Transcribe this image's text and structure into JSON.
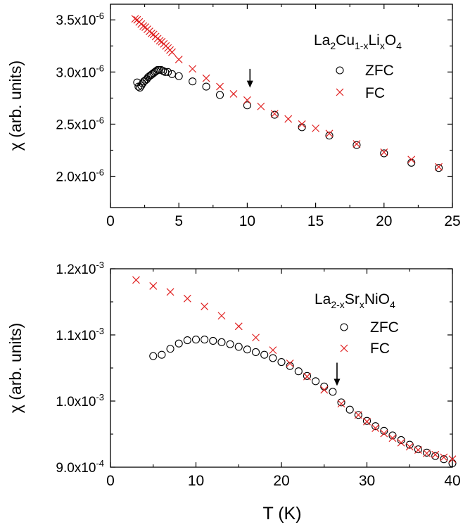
{
  "colors": {
    "zfc": "#000000",
    "fc": "#e02020",
    "axis": "#000000"
  },
  "figure": {
    "xlabel": "T (K)"
  },
  "chart_data": [
    {
      "type": "scatter",
      "panel": "top",
      "ylabel": "χ (arb. units)",
      "legend_title": {
        "text": "La2Cu1-xLixO4",
        "base": [
          "La",
          "Cu",
          "Li",
          "O"
        ],
        "subscripts": [
          "2",
          "1-x",
          "x",
          "4"
        ]
      },
      "legend_position": "top-right",
      "xlim": [
        0,
        25
      ],
      "ylim": [
        1.7e-06,
        3.65e-06
      ],
      "xticks": [
        0,
        5,
        10,
        15,
        20,
        25
      ],
      "xtick_labels": [
        "0",
        "5",
        "10",
        "15",
        "20",
        "25"
      ],
      "yticks": [
        2e-06,
        2.5e-06,
        3e-06,
        3.5e-06
      ],
      "ytick_labels": [
        {
          "mantissa": "2.0x10",
          "exp": "-6"
        },
        {
          "mantissa": "2.5x10",
          "exp": "-6"
        },
        {
          "mantissa": "3.0x10",
          "exp": "-6"
        },
        {
          "mantissa": "3.5x10",
          "exp": "-6"
        }
      ],
      "arrow_at": {
        "x": 10.2,
        "y_from": 3.03e-06,
        "y_to": 2.85e-06
      },
      "series": [
        {
          "name": "ZFC",
          "marker": "circle",
          "x": [
            1.95,
            2.05,
            2.15,
            2.25,
            2.35,
            2.45,
            2.55,
            2.65,
            2.75,
            2.85,
            2.95,
            3.05,
            3.15,
            3.25,
            3.35,
            3.45,
            3.55,
            3.7,
            3.85,
            4.0,
            4.2,
            4.5,
            5.0,
            6.0,
            7.0,
            8.0,
            10.0,
            12.0,
            14.0,
            16.0,
            18.0,
            20.0,
            22.0,
            24.0
          ],
          "y": [
            2.9e-06,
            2.86e-06,
            2.85e-06,
            2.87e-06,
            2.89e-06,
            2.91e-06,
            2.92e-06,
            2.93e-06,
            2.95e-06,
            2.96e-06,
            2.97e-06,
            2.98e-06,
            2.99e-06,
            3e-06,
            3.01e-06,
            3.02e-06,
            3.02e-06,
            3.02e-06,
            3.01e-06,
            3e-06,
            3e-06,
            2.98e-06,
            2.96e-06,
            2.91e-06,
            2.86e-06,
            2.78e-06,
            2.68e-06,
            2.59e-06,
            2.47e-06,
            2.39e-06,
            2.3e-06,
            2.22e-06,
            2.13e-06,
            2.08e-06
          ]
        },
        {
          "name": "FC",
          "marker": "cross",
          "x": [
            1.8,
            1.95,
            2.1,
            2.25,
            2.4,
            2.55,
            2.7,
            2.85,
            3.0,
            3.15,
            3.3,
            3.45,
            3.6,
            3.75,
            3.9,
            4.05,
            4.2,
            4.35,
            4.5,
            5.0,
            6.0,
            7.0,
            8.0,
            9.0,
            10.0,
            11.0,
            12.0,
            13.0,
            14.0,
            15.0,
            16.0,
            18.0,
            20.0,
            22.0,
            24.0
          ],
          "y": [
            3.51e-06,
            3.5e-06,
            3.48e-06,
            3.46e-06,
            3.44e-06,
            3.43e-06,
            3.41e-06,
            3.39e-06,
            3.37e-06,
            3.36e-06,
            3.34e-06,
            3.32e-06,
            3.3e-06,
            3.29e-06,
            3.27e-06,
            3.25e-06,
            3.23e-06,
            3.21e-06,
            3.19e-06,
            3.12e-06,
            3.03e-06,
            2.94e-06,
            2.86e-06,
            2.79e-06,
            2.73e-06,
            2.67e-06,
            2.6e-06,
            2.55e-06,
            2.5e-06,
            2.46e-06,
            2.41e-06,
            2.31e-06,
            2.23e-06,
            2.16e-06,
            2.09e-06
          ]
        }
      ]
    },
    {
      "type": "scatter",
      "panel": "bottom",
      "ylabel": "χ (arb. units)",
      "xlabel": "T (K)",
      "legend_title": {
        "text": "La2-xSrxNiO4",
        "base": [
          "La",
          "Sr",
          "NiO"
        ],
        "subscripts": [
          "2-x",
          "x",
          "4"
        ]
      },
      "legend_position": "right",
      "xlim": [
        0,
        40
      ],
      "ylim": [
        0.0009,
        0.0012
      ],
      "xticks": [
        0,
        10,
        20,
        30,
        40
      ],
      "xtick_labels": [
        "0",
        "10",
        "20",
        "30",
        "40"
      ],
      "yticks": [
        0.0009,
        0.001,
        0.0011,
        0.0012
      ],
      "ytick_labels": [
        {
          "mantissa": "9.0x10",
          "exp": "-4"
        },
        {
          "mantissa": "1.0x10",
          "exp": "-3"
        },
        {
          "mantissa": "1.1x10",
          "exp": "-3"
        },
        {
          "mantissa": "1.2x10",
          "exp": "-3"
        }
      ],
      "arrow_at": {
        "x": 26.5,
        "y_from": 0.001058,
        "y_to": 0.001023
      },
      "series": [
        {
          "name": "ZFC",
          "marker": "circle",
          "x": [
            5,
            6,
            7,
            8,
            9,
            10,
            11,
            12,
            13,
            14,
            15,
            16,
            17,
            18,
            19,
            20,
            21,
            22,
            23,
            24,
            25,
            26,
            27,
            28,
            29,
            30,
            31,
            32,
            33,
            34,
            35,
            36,
            37,
            38,
            39,
            40
          ],
          "y": [
            0.001068,
            0.00107,
            0.001079,
            0.001087,
            0.001092,
            0.001093,
            0.001093,
            0.001091,
            0.001089,
            0.001086,
            0.001082,
            0.001078,
            0.001074,
            0.00107,
            0.001065,
            0.001059,
            0.001053,
            0.001045,
            0.001038,
            0.00103,
            0.001022,
            0.001014,
            0.000998,
            0.000987,
            0.000979,
            0.00097,
            0.000962,
            0.000955,
            0.000948,
            0.000941,
            0.000934,
            0.000927,
            0.000922,
            0.000917,
            0.000912,
            0.000906
          ]
        },
        {
          "name": "FC",
          "marker": "cross",
          "x": [
            3,
            5,
            7,
            9,
            11,
            13,
            15,
            17,
            19,
            21,
            23,
            25,
            27,
            29,
            30,
            31,
            32,
            33,
            34,
            35,
            36,
            37,
            38,
            39,
            40
          ],
          "y": [
            0.001183,
            0.001174,
            0.001165,
            0.001155,
            0.001143,
            0.001129,
            0.001113,
            0.001096,
            0.001077,
            0.001057,
            0.001037,
            0.001017,
            0.000996,
            0.000979,
            0.000969,
            0.000959,
            0.000951,
            0.000944,
            0.000937,
            0.000931,
            0.000926,
            0.000921,
            0.000919,
            0.000915,
            0.000912
          ]
        }
      ]
    }
  ]
}
